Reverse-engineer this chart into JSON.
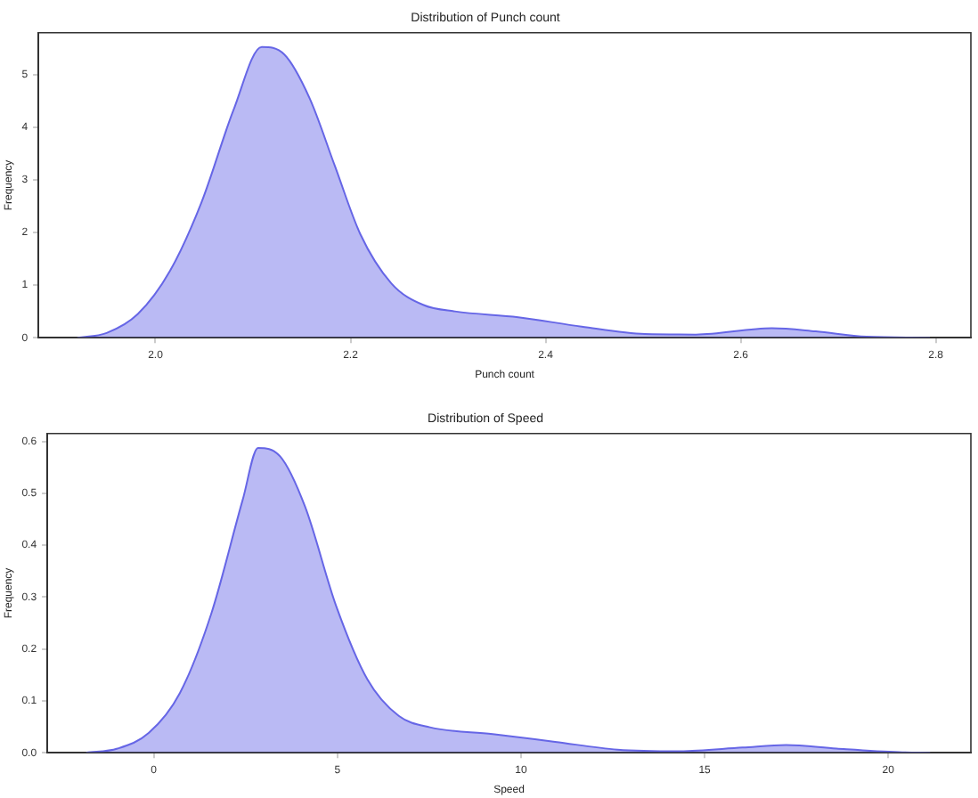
{
  "chart_data": [
    {
      "type": "area",
      "title": "Distribution of Punch count",
      "xlabel": "Punch count",
      "ylabel": "Frequency",
      "grid": false,
      "xlim": [
        1.88,
        2.836
      ],
      "xticks": [
        {
          "value": 2.0,
          "label": "2.0"
        },
        {
          "value": 2.2,
          "label": "2.2"
        },
        {
          "value": 2.4,
          "label": "2.4"
        },
        {
          "value": 2.6,
          "label": "2.6"
        },
        {
          "value": 2.8,
          "label": "2.8"
        }
      ],
      "ylim": [
        0,
        5.79
      ],
      "yticks": [
        0,
        1,
        2,
        3,
        4,
        5
      ],
      "x": [
        1.92,
        1.95,
        1.982,
        2.015,
        2.047,
        2.08,
        2.109,
        2.132,
        2.158,
        2.184,
        2.21,
        2.242,
        2.275,
        2.307,
        2.372,
        2.437,
        2.502,
        2.554,
        2.632,
        2.677,
        2.729,
        2.794
      ],
      "series": [
        {
          "color": "#6666e6",
          "values": [
            0,
            0.09,
            0.45,
            1.27,
            2.56,
            4.32,
            5.52,
            5.38,
            4.55,
            3.26,
            1.97,
            1.03,
            0.62,
            0.5,
            0.39,
            0.21,
            0.07,
            0.06,
            0.18,
            0.12,
            0.02,
            0
          ]
        }
      ]
    },
    {
      "type": "area",
      "title": "Distribution of Speed",
      "xlabel": "Speed",
      "ylabel": "Frequency",
      "grid": false,
      "xlim": [
        -2.9,
        22.25
      ],
      "xticks": [
        0,
        5,
        10,
        15,
        20
      ],
      "ylim": [
        0,
        0.615
      ],
      "yticks": [
        {
          "value": 0,
          "label": "0.0"
        },
        0.1,
        0.2,
        0.3,
        0.4,
        0.5,
        0.6
      ],
      "x": [
        -1.84,
        -0.99,
        -0.14,
        0.71,
        1.57,
        2.42,
        2.84,
        3.44,
        4.12,
        4.97,
        5.82,
        6.67,
        7.52,
        9.23,
        10.93,
        12.63,
        14.33,
        16.03,
        17.22,
        18.59,
        20.29,
        21.14
      ],
      "series": [
        {
          "color": "#6666e6",
          "values": [
            0,
            0.008,
            0.038,
            0.115,
            0.269,
            0.487,
            0.587,
            0.571,
            0.474,
            0.282,
            0.141,
            0.071,
            0.049,
            0.036,
            0.021,
            0.006,
            0.003,
            0.01,
            0.015,
            0.008,
            0.001,
            0
          ]
        }
      ]
    }
  ]
}
